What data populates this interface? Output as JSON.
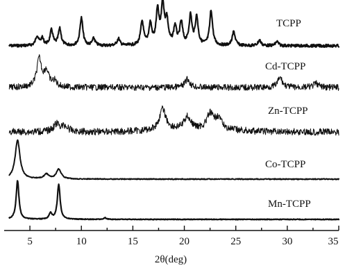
{
  "chart_data": {
    "type": "line",
    "title": "",
    "xlabel": "2θ(deg)",
    "ylabel": "",
    "xlim": [
      2.5,
      35
    ],
    "x_ticks": [
      5,
      10,
      15,
      20,
      25,
      30,
      35
    ],
    "x_tick_labels": [
      "5",
      "10",
      "15",
      "20",
      "25",
      "30",
      "35"
    ],
    "grid": false,
    "legend": "labels placed beside each stacked trace",
    "series": [
      {
        "name": "TCPP",
        "peaks": [
          {
            "x": 5.7,
            "h": 0.35
          },
          {
            "x": 6.2,
            "h": 0.25
          },
          {
            "x": 7.1,
            "h": 0.55
          },
          {
            "x": 7.9,
            "h": 0.6
          },
          {
            "x": 10.0,
            "h": 1.0
          },
          {
            "x": 11.2,
            "h": 0.25
          },
          {
            "x": 13.6,
            "h": 0.25
          },
          {
            "x": 15.9,
            "h": 0.85
          },
          {
            "x": 16.7,
            "h": 0.75
          },
          {
            "x": 17.4,
            "h": 1.2
          },
          {
            "x": 17.9,
            "h": 1.45
          },
          {
            "x": 18.3,
            "h": 0.85
          },
          {
            "x": 19.1,
            "h": 0.65
          },
          {
            "x": 19.7,
            "h": 0.8
          },
          {
            "x": 20.6,
            "h": 1.05
          },
          {
            "x": 21.2,
            "h": 1.0
          },
          {
            "x": 22.6,
            "h": 1.25
          },
          {
            "x": 24.8,
            "h": 0.5
          },
          {
            "x": 27.3,
            "h": 0.2
          },
          {
            "x": 29.0,
            "h": 0.15
          }
        ]
      },
      {
        "name": "Cd-TCPP",
        "peaks": [
          {
            "x": 5.9,
            "h": 1.0
          },
          {
            "x": 6.6,
            "h": 0.55
          },
          {
            "x": 7.4,
            "h": 0.2
          },
          {
            "x": 20.3,
            "h": 0.3
          },
          {
            "x": 29.3,
            "h": 0.35
          },
          {
            "x": 32.8,
            "h": 0.15
          }
        ]
      },
      {
        "name": "Zn-TCPP",
        "peaks": [
          {
            "x": 7.6,
            "h": 0.35
          },
          {
            "x": 8.4,
            "h": 0.25
          },
          {
            "x": 17.9,
            "h": 1.0
          },
          {
            "x": 20.3,
            "h": 0.6
          },
          {
            "x": 22.5,
            "h": 0.7
          },
          {
            "x": 23.3,
            "h": 0.55
          }
        ]
      },
      {
        "name": "Co-TCPP",
        "peaks": [
          {
            "x": 3.8,
            "h": 1.0
          },
          {
            "x": 6.6,
            "h": 0.12
          },
          {
            "x": 7.8,
            "h": 0.25
          }
        ]
      },
      {
        "name": "Mn-TCPP",
        "peaks": [
          {
            "x": 3.8,
            "h": 1.0
          },
          {
            "x": 7.0,
            "h": 0.15
          },
          {
            "x": 7.8,
            "h": 0.9
          },
          {
            "x": 12.3,
            "h": 0.04
          }
        ]
      }
    ]
  }
}
